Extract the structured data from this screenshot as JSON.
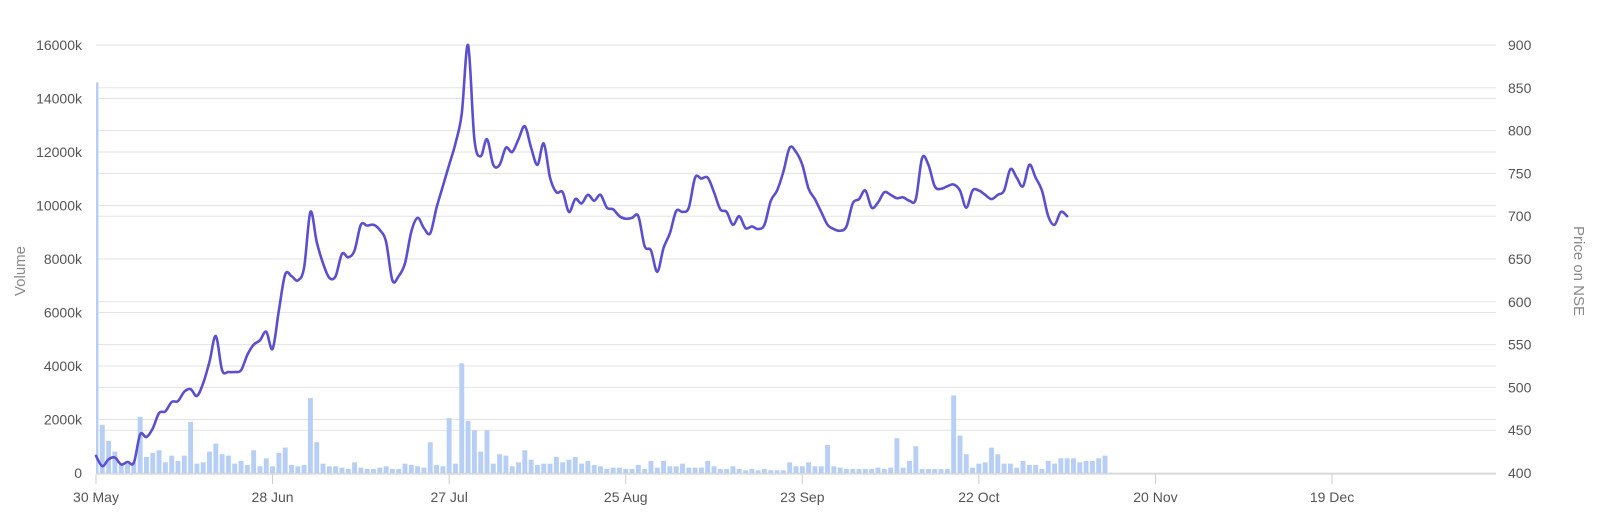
{
  "chart_data": {
    "type": "bar+line",
    "xlabel": "",
    "y_left": {
      "label": "Volume",
      "range": [
        0,
        16000
      ],
      "ticks": [
        0,
        2000,
        4000,
        6000,
        8000,
        10000,
        12000,
        14000,
        16000
      ],
      "tick_labels": [
        "0",
        "2000k",
        "4000k",
        "6000k",
        "8000k",
        "10000k",
        "12000k",
        "14000k",
        "16000k"
      ]
    },
    "y_right": {
      "label": "Price on NSE",
      "range": [
        400,
        900
      ],
      "ticks": [
        400,
        450,
        500,
        550,
        600,
        650,
        700,
        750,
        800,
        850,
        900
      ],
      "tick_labels": [
        "400",
        "450",
        "500",
        "550",
        "600",
        "650",
        "700",
        "750",
        "800",
        "850",
        "900"
      ]
    },
    "x_range_days": [
      0,
      222
    ],
    "x_ticks": [
      {
        "day": 0,
        "label": "30 May"
      },
      {
        "day": 28,
        "label": "28 Jun"
      },
      {
        "day": 56,
        "label": "27 Jul"
      },
      {
        "day": 84,
        "label": "25 Aug"
      },
      {
        "day": 112,
        "label": "23 Sep"
      },
      {
        "day": 140,
        "label": "22 Oct"
      },
      {
        "day": 168,
        "label": "20 Nov"
      },
      {
        "day": 196,
        "label": "19 Dec"
      }
    ],
    "grid": true,
    "series": [
      {
        "name": "",
        "kind": "bar",
        "axis": "left",
        "color": "#b8cff5",
        "points": [
          [
            0,
            14600
          ],
          [
            1,
            1800
          ],
          [
            2,
            1200
          ],
          [
            3,
            800
          ],
          [
            4,
            300
          ],
          [
            5,
            350
          ],
          [
            6,
            400
          ],
          [
            7,
            2100
          ],
          [
            8,
            600
          ],
          [
            9,
            750
          ],
          [
            10,
            850
          ],
          [
            11,
            400
          ],
          [
            12,
            650
          ],
          [
            13,
            450
          ],
          [
            14,
            650
          ],
          [
            15,
            1900
          ],
          [
            16,
            350
          ],
          [
            17,
            400
          ],
          [
            18,
            800
          ],
          [
            19,
            1100
          ],
          [
            20,
            700
          ],
          [
            21,
            650
          ],
          [
            22,
            350
          ],
          [
            23,
            450
          ],
          [
            24,
            300
          ],
          [
            25,
            850
          ],
          [
            26,
            250
          ],
          [
            27,
            550
          ],
          [
            28,
            250
          ],
          [
            29,
            750
          ],
          [
            30,
            950
          ],
          [
            31,
            300
          ],
          [
            32,
            250
          ],
          [
            33,
            300
          ],
          [
            34,
            2800
          ],
          [
            35,
            1150
          ],
          [
            36,
            350
          ],
          [
            37,
            250
          ],
          [
            38,
            250
          ],
          [
            39,
            200
          ],
          [
            40,
            150
          ],
          [
            41,
            400
          ],
          [
            42,
            200
          ],
          [
            43,
            150
          ],
          [
            44,
            150
          ],
          [
            45,
            200
          ],
          [
            46,
            250
          ],
          [
            47,
            150
          ],
          [
            48,
            150
          ],
          [
            49,
            350
          ],
          [
            50,
            300
          ],
          [
            51,
            250
          ],
          [
            52,
            200
          ],
          [
            53,
            1150
          ],
          [
            54,
            300
          ],
          [
            55,
            250
          ],
          [
            56,
            2050
          ],
          [
            57,
            350
          ],
          [
            58,
            4100
          ],
          [
            59,
            1950
          ],
          [
            60,
            1600
          ],
          [
            61,
            800
          ],
          [
            62,
            1600
          ],
          [
            63,
            350
          ],
          [
            64,
            700
          ],
          [
            65,
            650
          ],
          [
            66,
            250
          ],
          [
            67,
            400
          ],
          [
            68,
            850
          ],
          [
            69,
            500
          ],
          [
            70,
            300
          ],
          [
            71,
            350
          ],
          [
            72,
            350
          ],
          [
            73,
            600
          ],
          [
            74,
            400
          ],
          [
            75,
            500
          ],
          [
            76,
            600
          ],
          [
            77,
            350
          ],
          [
            78,
            450
          ],
          [
            79,
            300
          ],
          [
            80,
            250
          ],
          [
            81,
            150
          ],
          [
            82,
            200
          ],
          [
            83,
            200
          ],
          [
            84,
            150
          ],
          [
            85,
            150
          ],
          [
            86,
            300
          ],
          [
            87,
            150
          ],
          [
            88,
            450
          ],
          [
            89,
            200
          ],
          [
            90,
            450
          ],
          [
            91,
            250
          ],
          [
            92,
            250
          ],
          [
            93,
            350
          ],
          [
            94,
            200
          ],
          [
            95,
            200
          ],
          [
            96,
            200
          ],
          [
            97,
            450
          ],
          [
            98,
            250
          ],
          [
            99,
            150
          ],
          [
            100,
            150
          ],
          [
            101,
            250
          ],
          [
            102,
            150
          ],
          [
            103,
            100
          ],
          [
            104,
            150
          ],
          [
            105,
            100
          ],
          [
            106,
            150
          ],
          [
            107,
            100
          ],
          [
            108,
            100
          ],
          [
            109,
            100
          ],
          [
            110,
            400
          ],
          [
            111,
            250
          ],
          [
            112,
            250
          ],
          [
            113,
            400
          ],
          [
            114,
            250
          ],
          [
            115,
            250
          ],
          [
            116,
            1050
          ],
          [
            117,
            250
          ],
          [
            118,
            200
          ],
          [
            119,
            150
          ],
          [
            120,
            150
          ],
          [
            121,
            150
          ],
          [
            122,
            150
          ],
          [
            123,
            150
          ],
          [
            124,
            200
          ],
          [
            125,
            150
          ],
          [
            126,
            200
          ],
          [
            127,
            1300
          ],
          [
            128,
            200
          ],
          [
            129,
            450
          ],
          [
            130,
            1000
          ],
          [
            131,
            150
          ],
          [
            132,
            150
          ],
          [
            133,
            150
          ],
          [
            134,
            150
          ],
          [
            135,
            150
          ],
          [
            136,
            2900
          ],
          [
            137,
            1400
          ],
          [
            138,
            700
          ],
          [
            139,
            200
          ],
          [
            140,
            350
          ],
          [
            141,
            400
          ],
          [
            142,
            950
          ],
          [
            143,
            700
          ],
          [
            144,
            350
          ],
          [
            145,
            350
          ],
          [
            146,
            200
          ],
          [
            147,
            450
          ],
          [
            148,
            300
          ],
          [
            149,
            300
          ],
          [
            150,
            150
          ],
          [
            151,
            450
          ],
          [
            152,
            350
          ],
          [
            153,
            550
          ],
          [
            154,
            550
          ],
          [
            155,
            550
          ],
          [
            156,
            400
          ],
          [
            157,
            450
          ],
          [
            158,
            450
          ],
          [
            159,
            550
          ],
          [
            160,
            650
          ]
        ]
      },
      {
        "name": "",
        "kind": "line",
        "axis": "right",
        "color": "#5b4fcf",
        "points": [
          [
            0,
            420
          ],
          [
            1,
            408
          ],
          [
            2,
            416
          ],
          [
            3,
            418
          ],
          [
            4,
            410
          ],
          [
            5,
            413
          ],
          [
            6,
            412
          ],
          [
            7,
            445
          ],
          [
            8,
            442
          ],
          [
            9,
            452
          ],
          [
            10,
            470
          ],
          [
            11,
            472
          ],
          [
            12,
            483
          ],
          [
            13,
            484
          ],
          [
            14,
            495
          ],
          [
            15,
            498
          ],
          [
            16,
            490
          ],
          [
            17,
            505
          ],
          [
            18,
            530
          ],
          [
            19,
            560
          ],
          [
            20,
            520
          ],
          [
            21,
            518
          ],
          [
            22,
            518
          ],
          [
            23,
            520
          ],
          [
            24,
            538
          ],
          [
            25,
            550
          ],
          [
            26,
            555
          ],
          [
            27,
            565
          ],
          [
            28,
            545
          ],
          [
            29,
            590
          ],
          [
            30,
            632
          ],
          [
            31,
            630
          ],
          [
            32,
            625
          ],
          [
            33,
            640
          ],
          [
            34,
            705
          ],
          [
            35,
            670
          ],
          [
            36,
            645
          ],
          [
            37,
            628
          ],
          [
            38,
            630
          ],
          [
            39,
            656
          ],
          [
            40,
            652
          ],
          [
            41,
            660
          ],
          [
            42,
            690
          ],
          [
            43,
            689
          ],
          [
            44,
            690
          ],
          [
            45,
            684
          ],
          [
            46,
            670
          ],
          [
            47,
            625
          ],
          [
            48,
            630
          ],
          [
            49,
            645
          ],
          [
            50,
            682
          ],
          [
            51,
            698
          ],
          [
            52,
            686
          ],
          [
            53,
            680
          ],
          [
            54,
            710
          ],
          [
            55,
            735
          ],
          [
            56,
            760
          ],
          [
            57,
            785
          ],
          [
            58,
            820
          ],
          [
            59,
            900
          ],
          [
            60,
            790
          ],
          [
            61,
            770
          ],
          [
            62,
            790
          ],
          [
            63,
            760
          ],
          [
            64,
            760
          ],
          [
            65,
            780
          ],
          [
            66,
            775
          ],
          [
            67,
            790
          ],
          [
            68,
            805
          ],
          [
            69,
            780
          ],
          [
            70,
            760
          ],
          [
            71,
            785
          ],
          [
            72,
            745
          ],
          [
            73,
            728
          ],
          [
            74,
            728
          ],
          [
            75,
            705
          ],
          [
            76,
            720
          ],
          [
            77,
            715
          ],
          [
            78,
            725
          ],
          [
            79,
            718
          ],
          [
            80,
            725
          ],
          [
            81,
            710
          ],
          [
            82,
            708
          ],
          [
            83,
            700
          ],
          [
            84,
            697
          ],
          [
            85,
            698
          ],
          [
            86,
            700
          ],
          [
            87,
            665
          ],
          [
            88,
            660
          ],
          [
            89,
            635
          ],
          [
            90,
            663
          ],
          [
            91,
            680
          ],
          [
            92,
            706
          ],
          [
            93,
            705
          ],
          [
            94,
            710
          ],
          [
            95,
            745
          ],
          [
            96,
            744
          ],
          [
            97,
            745
          ],
          [
            98,
            728
          ],
          [
            99,
            708
          ],
          [
            100,
            705
          ],
          [
            101,
            690
          ],
          [
            102,
            700
          ],
          [
            103,
            686
          ],
          [
            104,
            688
          ],
          [
            105,
            685
          ],
          [
            106,
            690
          ],
          [
            107,
            718
          ],
          [
            108,
            730
          ],
          [
            109,
            752
          ],
          [
            110,
            780
          ],
          [
            111,
            775
          ],
          [
            112,
            760
          ],
          [
            113,
            732
          ],
          [
            114,
            720
          ],
          [
            115,
            705
          ],
          [
            116,
            690
          ],
          [
            117,
            685
          ],
          [
            118,
            683
          ],
          [
            119,
            688
          ],
          [
            120,
            715
          ],
          [
            121,
            720
          ],
          [
            122,
            730
          ],
          [
            123,
            710
          ],
          [
            124,
            716
          ],
          [
            125,
            728
          ],
          [
            126,
            725
          ],
          [
            127,
            721
          ],
          [
            128,
            722
          ],
          [
            129,
            718
          ],
          [
            130,
            720
          ],
          [
            131,
            768
          ],
          [
            132,
            760
          ],
          [
            133,
            735
          ],
          [
            134,
            732
          ],
          [
            135,
            735
          ],
          [
            136,
            737
          ],
          [
            137,
            730
          ],
          [
            138,
            710
          ],
          [
            139,
            730
          ],
          [
            140,
            730
          ],
          [
            141,
            725
          ],
          [
            142,
            720
          ],
          [
            143,
            725
          ],
          [
            144,
            730
          ],
          [
            145,
            755
          ],
          [
            146,
            745
          ],
          [
            147,
            735
          ],
          [
            148,
            760
          ],
          [
            149,
            745
          ],
          [
            150,
            730
          ],
          [
            151,
            700
          ],
          [
            152,
            690
          ],
          [
            153,
            705
          ],
          [
            154,
            700
          ]
        ]
      }
    ]
  }
}
